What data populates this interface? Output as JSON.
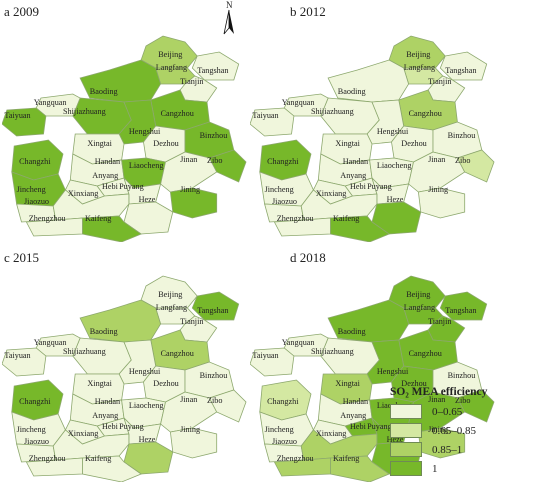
{
  "panels": [
    {
      "label": "a 2009",
      "levels": {
        "Beijing": 2,
        "Langfang": 2,
        "Tangshan": 0,
        "Tianjin": 0,
        "Baoding": 3,
        "Shijiazhuang": 3,
        "Yangquan": 0,
        "Taiyuan": 3,
        "Cangzhou": 3,
        "Hengshui": 3,
        "Xingtai": 0,
        "Dezhou": 0,
        "Binzhou": 3,
        "Changzhi": 3,
        "Handan": 0,
        "Liaocheng": 3,
        "Jinan": 0,
        "Zibo": 3,
        "Anyang": 0,
        "Hebi": 0,
        "Puyang": 0,
        "Jincheng": 3,
        "Xinxiang": 0,
        "Jiaozuo": 0,
        "Heze": 0,
        "Jining": 3,
        "Zhengzhou": 0,
        "Kaifeng": 3
      }
    },
    {
      "label": "b 2012",
      "levels": {
        "Beijing": 2,
        "Langfang": 1,
        "Tangshan": 0,
        "Tianjin": 0,
        "Baoding": 0,
        "Shijiazhuang": 0,
        "Yangquan": 0,
        "Taiyuan": 0,
        "Cangzhou": 2,
        "Hengshui": 0,
        "Xingtai": 0,
        "Dezhou": 0,
        "Binzhou": 0,
        "Changzhi": 3,
        "Handan": 0,
        "Liaocheng": 0,
        "Jinan": 0,
        "Zibo": 1,
        "Anyang": 0,
        "Hebi": 0,
        "Puyang": 0,
        "Jincheng": 0,
        "Xinxiang": 0,
        "Jiaozuo": 0,
        "Heze": 3,
        "Jining": 0,
        "Zhengzhou": 0,
        "Kaifeng": 3
      }
    },
    {
      "label": "c 2015",
      "levels": {
        "Beijing": 0,
        "Langfang": 0,
        "Tangshan": 3,
        "Tianjin": 0,
        "Baoding": 2,
        "Shijiazhuang": 0,
        "Yangquan": 0,
        "Taiyuan": 0,
        "Cangzhou": 2,
        "Hengshui": 0,
        "Xingtai": 0,
        "Dezhou": 0,
        "Binzhou": 0,
        "Changzhi": 3,
        "Handan": 0,
        "Liaocheng": 0,
        "Jinan": 0,
        "Zibo": 0,
        "Anyang": 0,
        "Hebi": 0,
        "Puyang": 0,
        "Jincheng": 0,
        "Xinxiang": 0,
        "Jiaozuo": 0,
        "Heze": 2,
        "Jining": 0,
        "Zhengzhou": 0,
        "Kaifeng": 0
      }
    },
    {
      "label": "d 2018",
      "levels": {
        "Beijing": 3,
        "Langfang": 3,
        "Tangshan": 3,
        "Tianjin": 3,
        "Baoding": 3,
        "Shijiazhuang": 0,
        "Yangquan": 0,
        "Taiyuan": 0,
        "Cangzhou": 3,
        "Hengshui": 3,
        "Xingtai": 2,
        "Dezhou": 3,
        "Binzhou": 0,
        "Changzhi": 1,
        "Handan": 0,
        "Liaocheng": 3,
        "Jinan": 3,
        "Zibo": 3,
        "Anyang": 0,
        "Hebi": 3,
        "Puyang": 3,
        "Jincheng": 0,
        "Xinxiang": 2,
        "Jiaozuo": 0,
        "Heze": 3,
        "Jining": 2,
        "Zhengzhou": 2,
        "Kaifeng": 2
      }
    }
  ],
  "north_label": "N",
  "legend": {
    "title": "SO₂ MEA efficiency",
    "items": [
      {
        "label": "0–0.65",
        "color": "#f0f6dc"
      },
      {
        "label": "0.65–0.85",
        "color": "#d4e8a2"
      },
      {
        "label": "0.85–1",
        "color": "#aed265"
      },
      {
        "label": "1",
        "color": "#77b82a"
      }
    ]
  },
  "border_color": "#8da86e"
}
